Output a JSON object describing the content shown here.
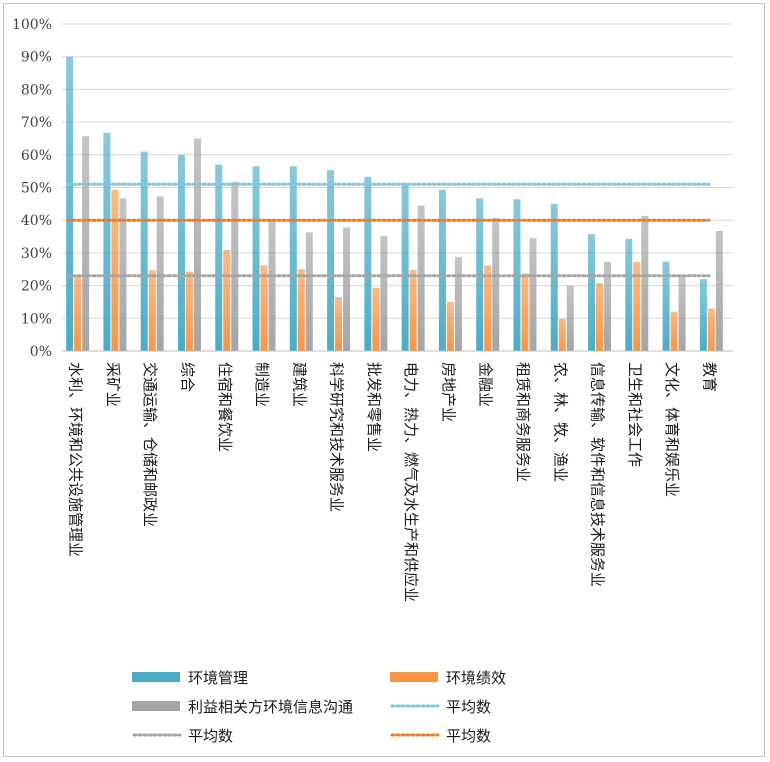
{
  "chart_data": {
    "type": "bar",
    "ylim": [
      0,
      100
    ],
    "yticks": [
      "0%",
      "10%",
      "20%",
      "30%",
      "40%",
      "50%",
      "60%",
      "70%",
      "80%",
      "90%",
      "100%"
    ],
    "grid": true,
    "legend_position": "bottom",
    "categories": [
      "水利、环境和公共设施管理业",
      "采矿业",
      "交通运输、仓储和邮政业",
      "综合",
      "住宿和餐饮业",
      "制造业",
      "建筑业",
      "科学研究和技术服务业",
      "批发和零售业",
      "电力、热力、燃气及水生产和供应业",
      "房地产业",
      "金融业",
      "租赁和商务服务业",
      "农、林、牧、渔业",
      "信息传输、软件和信息技术服务业",
      "卫生和社会工作",
      "文化、体育和娱乐业",
      "教育"
    ],
    "series": [
      {
        "name": "环境管理",
        "color": "#4bacc6",
        "values": [
          90,
          66.7,
          61,
          60,
          57,
          56.5,
          56.5,
          55.3,
          53.3,
          51,
          49.3,
          46.7,
          46.4,
          45,
          35.7,
          34.3,
          27.3,
          22
        ]
      },
      {
        "name": "环境绩效",
        "color": "#f79646",
        "values": [
          23.3,
          49.3,
          24.7,
          24.3,
          30.9,
          26.2,
          25,
          16.5,
          19.3,
          24.8,
          15,
          26.2,
          23.7,
          9.8,
          20.8,
          27.2,
          12,
          13
        ]
      },
      {
        "name": "利益相关方环境信息沟通",
        "color": "#a5a5a5",
        "values": [
          65.7,
          46.7,
          47.3,
          65,
          51.7,
          40,
          36.3,
          37.8,
          35.2,
          44.5,
          28.7,
          40.7,
          34.5,
          20,
          27.3,
          41.3,
          22.7,
          36.7
        ]
      }
    ],
    "averages": [
      {
        "name": "平均数",
        "value": 51,
        "color": "#7fc7d9"
      },
      {
        "name": "平均数",
        "value": 23,
        "color": "#a5a5a5"
      },
      {
        "name": "平均数",
        "value": 40,
        "color": "#e87d2e"
      }
    ]
  }
}
